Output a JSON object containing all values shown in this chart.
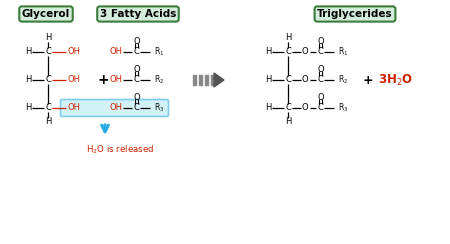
{
  "bg_color": "#ffffff",
  "label_glycerol": "Glycerol",
  "label_fatty": "3 Fatty Acids",
  "label_tri": "Triglycerides",
  "label_box_fill": "#d4edda",
  "label_box_edge": "#3a7d3a",
  "red_color": "#cc2200",
  "blue_color": "#29abe2",
  "black_color": "#111111",
  "arrow_body_color": "#888888",
  "arrow_head_color": "#555555"
}
